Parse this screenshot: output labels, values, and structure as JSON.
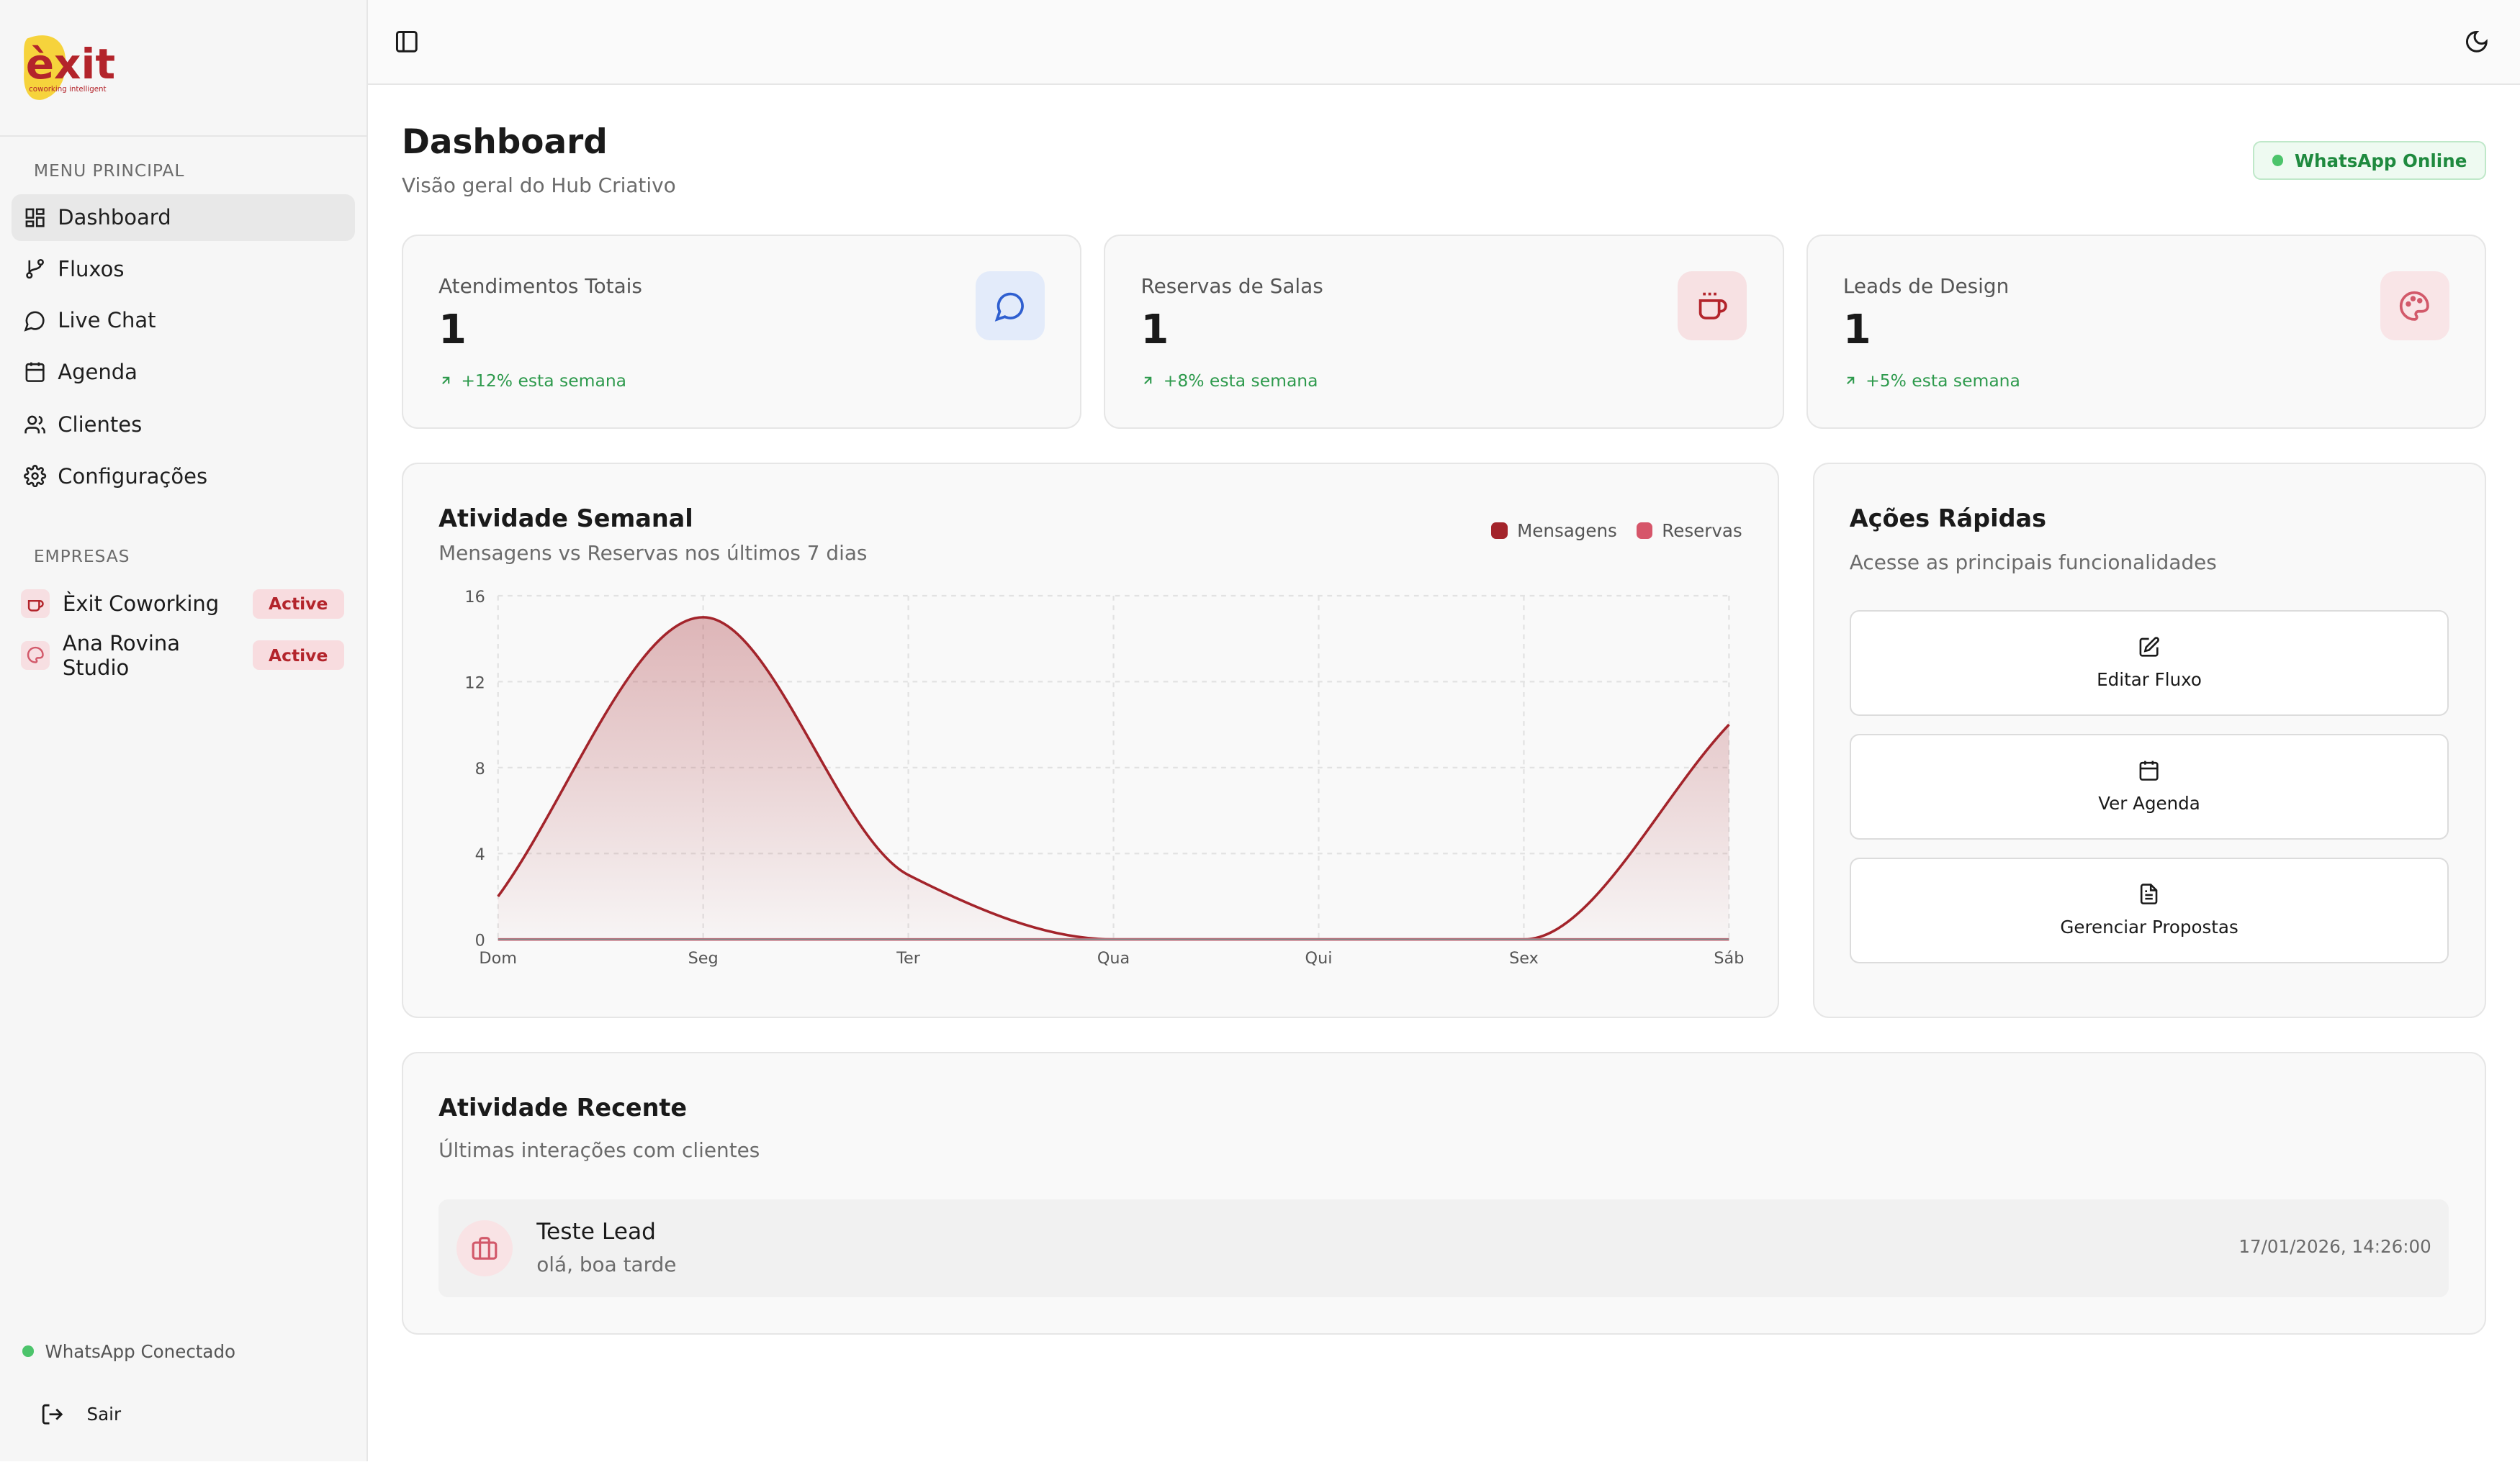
{
  "sidebar": {
    "logo": {
      "text": "èxit",
      "tagline": "coworking intelligent"
    },
    "menu_label": "MENU PRINCIPAL",
    "items": [
      {
        "label": "Dashboard",
        "icon": "dashboard-icon",
        "active": true
      },
      {
        "label": "Fluxos",
        "icon": "git-branch-icon"
      },
      {
        "label": "Live Chat",
        "icon": "chat-icon"
      },
      {
        "label": "Agenda",
        "icon": "calendar-icon"
      },
      {
        "label": "Clientes",
        "icon": "users-icon"
      },
      {
        "label": "Configurações",
        "icon": "gear-icon"
      }
    ],
    "companies_label": "EMPRESAS",
    "companies": [
      {
        "name": "Èxit Coworking",
        "icon": "coffee-icon",
        "status": "Active"
      },
      {
        "name": "Ana Rovina Studio",
        "icon": "palette-icon",
        "status": "Active"
      }
    ],
    "whatsapp_status": "WhatsApp Conectado",
    "logout_label": "Sair"
  },
  "header": {
    "title": "Dashboard",
    "subtitle": "Visão geral do Hub Criativo",
    "whatsapp_badge": "WhatsApp Online"
  },
  "stats": [
    {
      "label": "Atendimentos Totais",
      "value": "1",
      "trend": "+12% esta semana",
      "icon": "message-icon",
      "icon_bg": "#e3ebfa",
      "icon_color": "#2f5fd0"
    },
    {
      "label": "Reservas de Salas",
      "value": "1",
      "trend": "+8% esta semana",
      "icon": "coffee-icon",
      "icon_bg": "#f7e1e3",
      "icon_color": "#b3242b"
    },
    {
      "label": "Leads de Design",
      "value": "1",
      "trend": "+5% esta semana",
      "icon": "palette-icon",
      "icon_bg": "#f9e5e7",
      "icon_color": "#d2596a"
    }
  ],
  "activity_card": {
    "title": "Atividade Semanal",
    "subtitle": "Mensagens vs Reservas nos últimos 7 dias"
  },
  "chart_data": {
    "type": "area",
    "categories": [
      "Dom",
      "Seg",
      "Ter",
      "Qua",
      "Qui",
      "Sex",
      "Sáb"
    ],
    "series": [
      {
        "name": "Mensagens",
        "values": [
          2,
          15,
          3,
          0,
          0,
          0,
          10
        ],
        "color": "#a3242b"
      },
      {
        "name": "Reservas",
        "values": [
          0,
          0,
          0,
          0,
          0,
          0,
          0
        ],
        "color": "#d6566a"
      }
    ],
    "yticks": [
      0,
      4,
      8,
      12,
      16
    ],
    "ylim": [
      0,
      16
    ],
    "grid": true,
    "legend": "top-right"
  },
  "quick_actions": {
    "title": "Ações Rápidas",
    "subtitle": "Acesse as principais funcionalidades",
    "buttons": [
      {
        "label": "Editar Fluxo",
        "icon": "edit-icon"
      },
      {
        "label": "Ver Agenda",
        "icon": "calendar-icon"
      },
      {
        "label": "Gerenciar Propostas",
        "icon": "document-icon"
      }
    ]
  },
  "recent": {
    "title": "Atividade Recente",
    "subtitle": "Últimas interações com clientes",
    "items": [
      {
        "name": "Teste Lead",
        "message": "olá, boa tarde",
        "time": "17/01/2026, 14:26:00",
        "icon": "briefcase-icon"
      }
    ]
  }
}
